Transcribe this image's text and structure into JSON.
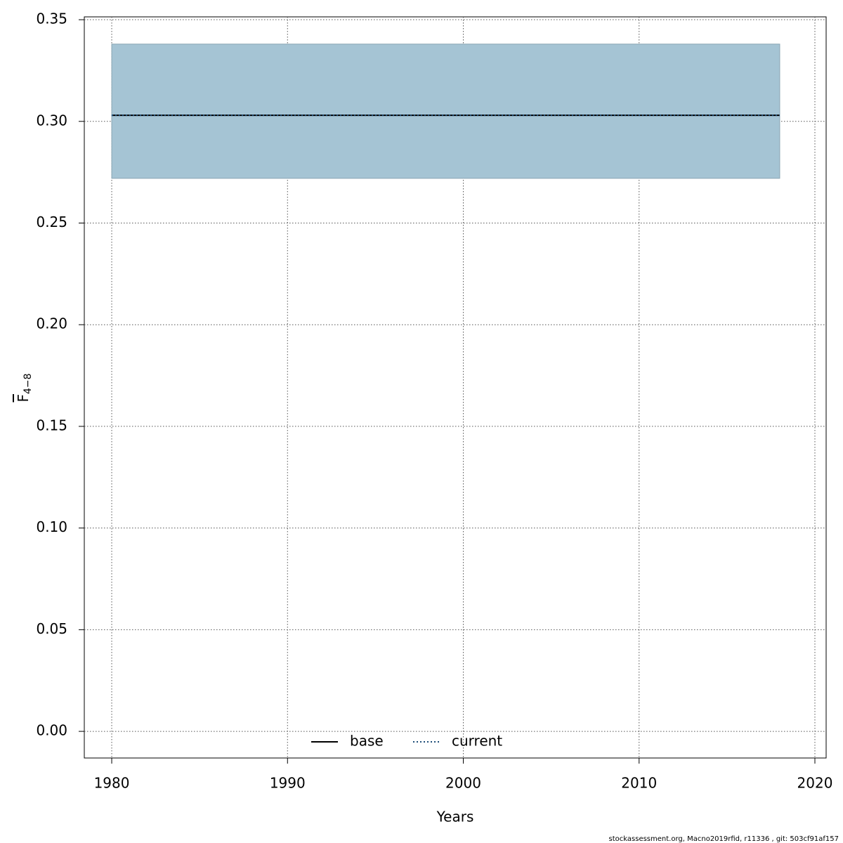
{
  "chart_data": {
    "type": "line",
    "x_label": "Years",
    "y_label": {
      "main": "F",
      "sub": "4−8"
    },
    "footer": "stockassessment.org, Macno2019rfid, r11336 , git: 503cf91af157",
    "x": [
      1980,
      2018
    ],
    "band": {
      "color": "#a5c4d4",
      "lower": [
        0.272,
        0.272
      ],
      "upper": [
        0.338,
        0.338
      ]
    },
    "series": [
      {
        "name": "base",
        "color": "#000000",
        "style": "solid",
        "values": [
          0.303,
          0.303
        ]
      },
      {
        "name": "current",
        "color": "#1f4e79",
        "style": "dotted",
        "values": [
          0.303,
          0.303
        ]
      }
    ],
    "xlim": [
      1978.44,
      2020.64
    ],
    "ylim": [
      -0.0131,
      0.3514
    ],
    "xticks": [
      1980,
      1990,
      2000,
      2010,
      2020
    ],
    "yticks": [
      {
        "value": 0,
        "label": "0.00"
      },
      0.05,
      {
        "value": 0.1,
        "label": "0.10"
      },
      0.15,
      {
        "value": 0.2,
        "label": "0.20"
      },
      0.25,
      {
        "value": 0.3,
        "label": "0.30"
      },
      0.35
    ],
    "grid": true,
    "legend": "bottom"
  }
}
